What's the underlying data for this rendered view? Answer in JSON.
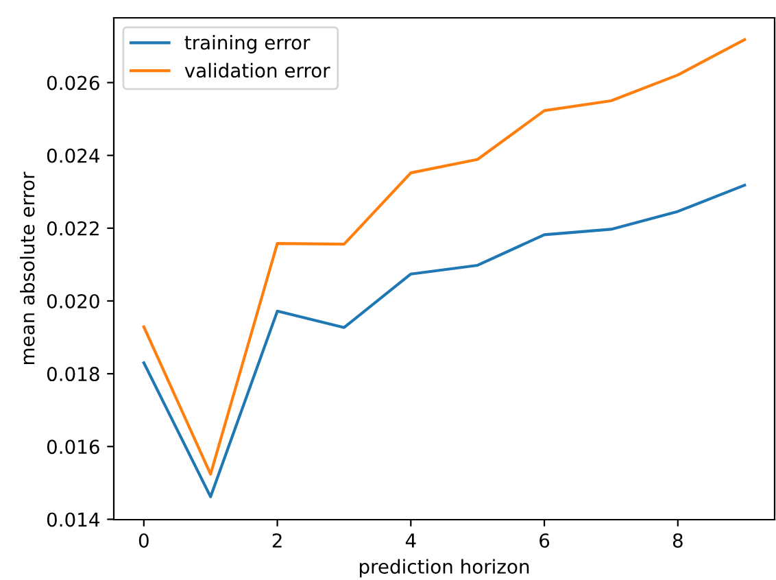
{
  "chart_data": {
    "type": "line",
    "xlabel": "prediction horizon",
    "ylabel": "mean absolute error",
    "x": [
      0,
      1,
      2,
      3,
      4,
      5,
      6,
      7,
      8,
      9
    ],
    "series": [
      {
        "name": "training error",
        "color": "#1f77b4",
        "values": [
          0.0183,
          0.01462,
          0.01972,
          0.01927,
          0.02074,
          0.02098,
          0.02182,
          0.02197,
          0.02246,
          0.02318
        ]
      },
      {
        "name": "validation error",
        "color": "#ff7f0e",
        "values": [
          0.01929,
          0.01524,
          0.02158,
          0.02156,
          0.02352,
          0.02389,
          0.02523,
          0.0255,
          0.02621,
          0.02718
        ]
      }
    ],
    "xlim": [
      -0.45,
      9.45
    ],
    "xticks": [
      0,
      2,
      4,
      6,
      8
    ],
    "ylim": [
      0.01399,
      0.02778
    ],
    "yticks": [
      {
        "value": 0.014,
        "label": "0.014"
      },
      {
        "value": 0.016,
        "label": "0.016"
      },
      {
        "value": 0.018,
        "label": "0.018"
      },
      {
        "value": 0.02,
        "label": "0.020"
      },
      {
        "value": 0.022,
        "label": "0.022"
      },
      {
        "value": 0.024,
        "label": "0.024"
      },
      {
        "value": 0.026,
        "label": "0.026"
      }
    ],
    "legend": "top left",
    "grid": false
  }
}
